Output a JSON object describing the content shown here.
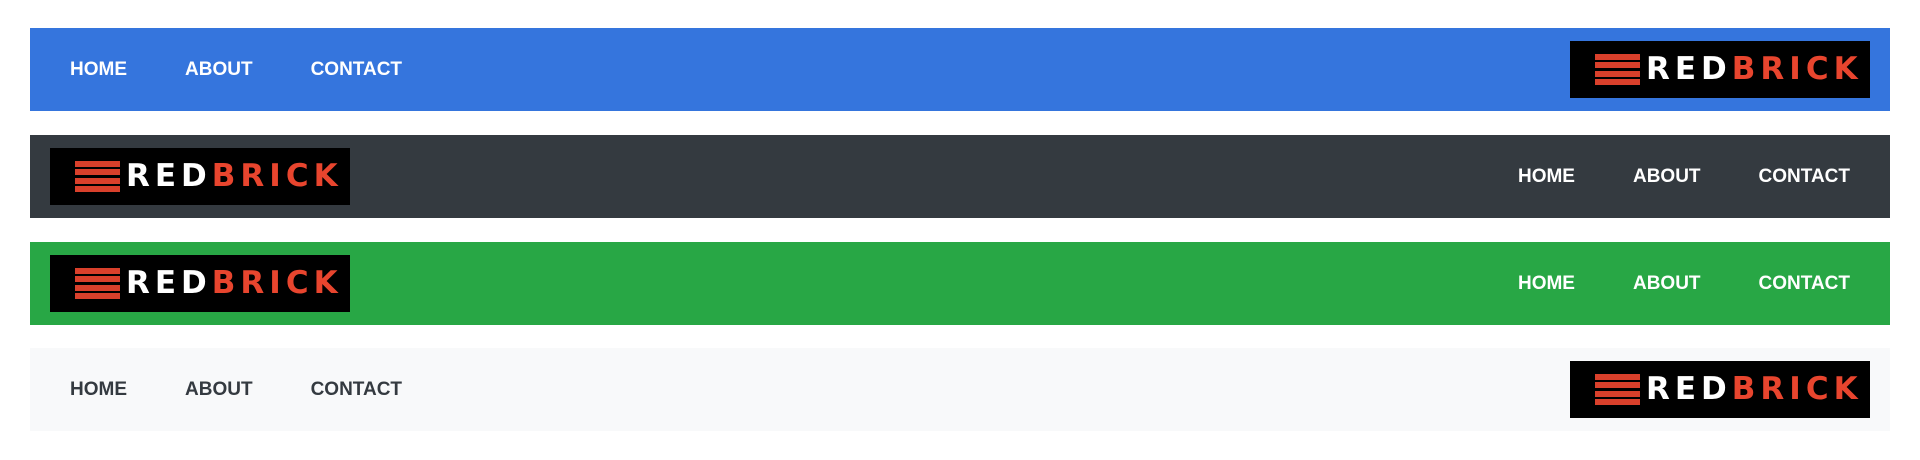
{
  "colors": {
    "bar1_bg": "#3575dd",
    "bar2_bg": "#343a40",
    "bar3_bg": "#28a745",
    "bar4_bg": "#f8f9fa",
    "light_text": "#ffffff",
    "dark_text": "#343a40",
    "logo_bg": "#000000",
    "logo_accent": "#e8452e"
  },
  "logo": {
    "word_white": "RED",
    "word_red": "BRICK",
    "icon": "brick-stack-icon"
  },
  "navbars": [
    {
      "links": [
        "HOME",
        "ABOUT",
        "CONTACT"
      ],
      "logo_side": "right"
    },
    {
      "links": [
        "HOME",
        "ABOUT",
        "CONTACT"
      ],
      "logo_side": "left"
    },
    {
      "links": [
        "HOME",
        "ABOUT",
        "CONTACT"
      ],
      "logo_side": "left"
    },
    {
      "links": [
        "HOME",
        "ABOUT",
        "CONTACT"
      ],
      "logo_side": "right"
    }
  ]
}
